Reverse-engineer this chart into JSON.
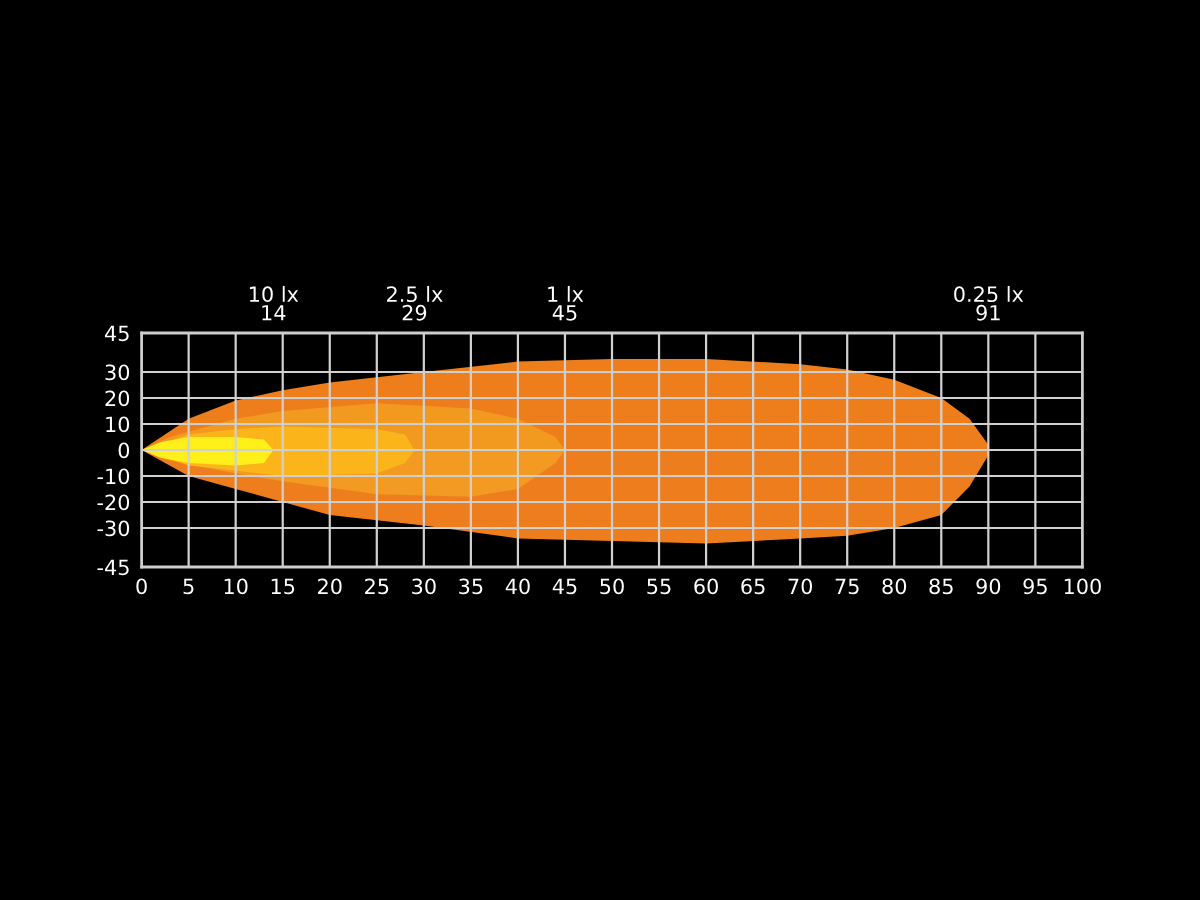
{
  "chart_data": {
    "type": "area",
    "series": [
      {
        "color": "#ee7d1c",
        "x": [
          0,
          5,
          10,
          15,
          20,
          30,
          40,
          50,
          60,
          70,
          75,
          80,
          85,
          88,
          90
        ],
        "values": [
          0,
          12,
          19,
          23,
          26,
          30,
          34,
          35,
          35,
          33,
          31,
          27,
          20,
          12,
          2
        ]
      },
      {
        "color": "#ee7d1d",
        "x": [
          0,
          5,
          10,
          15,
          20,
          30,
          40,
          50,
          60,
          70,
          75,
          80,
          85,
          88,
          90
        ],
        "values": [
          0,
          -10,
          -15,
          -20,
          -25,
          -29,
          -34,
          -35,
          -36,
          -34,
          -33,
          -30,
          -25,
          -14,
          -2
        ]
      },
      {
        "color": "#f29a20",
        "x": [
          0,
          3,
          10,
          15,
          25,
          35,
          40,
          44,
          45
        ],
        "values": [
          0,
          5,
          12,
          15,
          18,
          16,
          12,
          5,
          0
        ]
      },
      {
        "color": "#f29a21",
        "x": [
          0,
          3,
          10,
          15,
          25,
          35,
          40,
          44,
          45
        ],
        "values": [
          0,
          -4,
          -9,
          -12,
          -17,
          -18,
          -15,
          -5,
          0
        ]
      },
      {
        "color": "#fbb51a",
        "x": [
          0,
          5,
          10,
          15,
          25,
          28,
          29
        ],
        "values": [
          0,
          6,
          8,
          9,
          8,
          6,
          0
        ]
      },
      {
        "color": "#fbb51b",
        "x": [
          0,
          5,
          10,
          15,
          25,
          28,
          29
        ],
        "values": [
          0,
          -6,
          -8,
          -10,
          -9,
          -5,
          0
        ]
      },
      {
        "color": "#fff01a",
        "x": [
          0,
          2,
          5,
          10,
          13,
          14
        ],
        "values": [
          0,
          3,
          5,
          5,
          4,
          0
        ]
      },
      {
        "color": "#fff01b",
        "x": [
          0,
          2,
          5,
          10,
          13,
          14
        ],
        "values": [
          0,
          -3,
          -5,
          -6,
          -5,
          0
        ]
      }
    ],
    "annotations": [
      "10 lx\n14",
      "2.5 lx\n29",
      "1 lx\n45",
      "0.25 lx\n91"
    ],
    "xlim": [
      0,
      100
    ],
    "xticks": [
      0,
      5,
      10,
      15,
      20,
      25,
      30,
      35,
      40,
      45,
      50,
      55,
      60,
      65,
      70,
      75,
      80,
      85,
      90,
      95,
      100
    ],
    "ylim": [
      -45,
      45
    ],
    "yticks": [
      -45,
      -30,
      -20,
      -10,
      0,
      10,
      20,
      30,
      45
    ],
    "grid": true,
    "legend": false
  }
}
